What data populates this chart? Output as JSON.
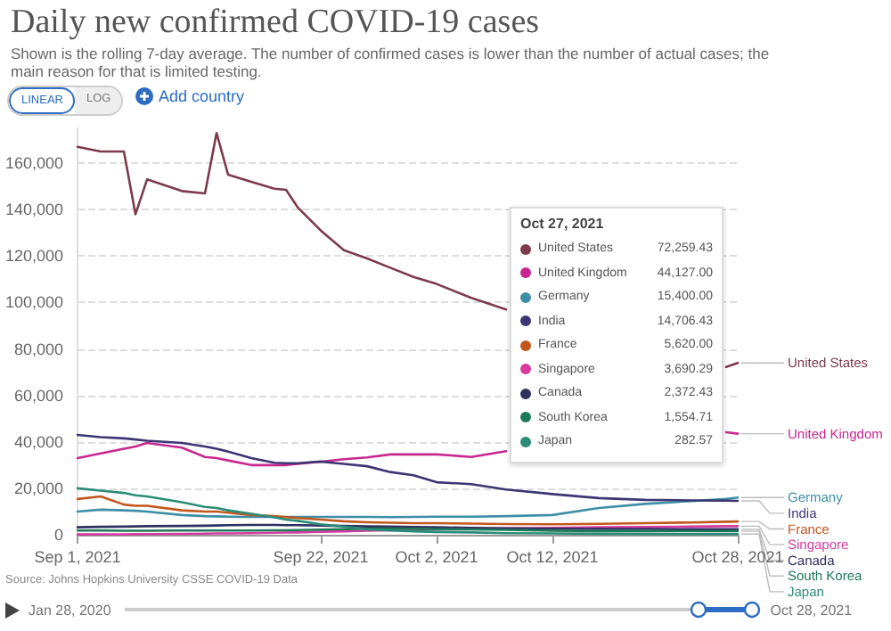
{
  "chart_data": {
    "type": "line",
    "title": "Daily new confirmed COVID-19 cases",
    "subtitle": "Shown is the rolling 7-day average. The number of confirmed cases is lower than the number of actual cases; the main reason for that is limited testing.",
    "annotations": [
      "LINEAR",
      "LOG",
      "Add country",
      "Source: Johns Hopkins University CSSE COVID-19 Data",
      "Jan 28, 2020",
      "Oct 28, 2021",
      "Oct 27, 2021",
      "72,259.43",
      "44,127.00",
      "15,400.00",
      "14,706.43",
      "5,620.00",
      "3,690.29",
      "2,372.43",
      "1,554.71",
      "282.57"
    ],
    "x": [
      "2021-09-01",
      "2021-09-03",
      "2021-09-05",
      "2021-09-06",
      "2021-09-07",
      "2021-09-10",
      "2021-09-12",
      "2021-09-13",
      "2021-09-14",
      "2021-09-16",
      "2021-09-18",
      "2021-09-19",
      "2021-09-20",
      "2021-09-22",
      "2021-09-24",
      "2021-09-26",
      "2021-09-28",
      "2021-09-30",
      "2021-10-02",
      "2021-10-05",
      "2021-10-08",
      "2021-10-12",
      "2021-10-16",
      "2021-10-20",
      "2021-10-24",
      "2021-10-27",
      "2021-10-28"
    ],
    "series": [
      {
        "name": "United States",
        "color": "#7d3b4b",
        "values": [
          167000,
          165000,
          165000,
          138000,
          153000,
          148000,
          147000,
          173000,
          155000,
          152000,
          149000,
          148500,
          141000,
          131000,
          122500,
          119000,
          115000,
          111000,
          108000,
          102000,
          97000,
          null,
          null,
          null,
          null,
          72259.43,
          74000
        ]
      },
      {
        "name": "United Kingdom",
        "color": "#c8278f",
        "values": [
          33000,
          35000,
          37000,
          38000,
          39500,
          37500,
          33500,
          33000,
          32000,
          30000,
          30000,
          30000,
          30500,
          31500,
          32500,
          33300,
          34600,
          34600,
          34600,
          33500,
          36000,
          null,
          null,
          null,
          null,
          44127,
          43500
        ]
      },
      {
        "name": "Germany",
        "color": "#3d8ea8",
        "values": [
          10000,
          10800,
          10500,
          10300,
          10000,
          8500,
          8000,
          7900,
          7800,
          7700,
          7700,
          7700,
          7700,
          7700,
          7700,
          7700,
          7600,
          7700,
          7800,
          7800,
          8000,
          8500,
          11500,
          13300,
          14500,
          15400,
          16000
        ]
      },
      {
        "name": "India",
        "color": "#3b3573",
        "values": [
          43000,
          42000,
          41500,
          41000,
          40500,
          39500,
          38000,
          37000,
          35800,
          33000,
          31000,
          30800,
          30800,
          31500,
          30500,
          29500,
          27000,
          25600,
          22600,
          21800,
          19500,
          17500,
          15800,
          15000,
          14800,
          14706.43,
          14600
        ]
      },
      {
        "name": "France",
        "color": "#c2571e",
        "values": [
          15400,
          16500,
          13000,
          12500,
          12500,
          10500,
          10000,
          10000,
          9500,
          8500,
          8000,
          7600,
          7200,
          6500,
          5800,
          5400,
          5200,
          5000,
          5000,
          4800,
          4600,
          4500,
          4700,
          5000,
          5300,
          5620,
          5700
        ]
      },
      {
        "name": "Singapore",
        "color": "#d33b9e",
        "values": [
          150,
          180,
          220,
          250,
          270,
          400,
          500,
          550,
          600,
          700,
          850,
          950,
          1000,
          1300,
          1500,
          1700,
          1900,
          2100,
          2300,
          2600,
          2800,
          3000,
          3200,
          3300,
          3500,
          3690.29,
          3700
        ]
      },
      {
        "name": "Canada",
        "color": "#2e3160",
        "values": [
          3200,
          3400,
          3500,
          3600,
          3700,
          3800,
          3900,
          4000,
          4100,
          4200,
          4200,
          4100,
          4100,
          4000,
          3800,
          3600,
          3500,
          3300,
          3200,
          3000,
          2800,
          2600,
          2500,
          2500,
          2400,
          2372.43,
          2350
        ]
      },
      {
        "name": "South Korea",
        "color": "#1d7a58",
        "values": [
          1800,
          1800,
          1750,
          1700,
          1750,
          1800,
          1850,
          1850,
          1850,
          1850,
          1900,
          1900,
          2000,
          2200,
          2400,
          2600,
          2700,
          2600,
          2400,
          2300,
          2100,
          1700,
          1600,
          1600,
          1550,
          1554.71,
          1600
        ]
      },
      {
        "name": "Japan",
        "color": "#2a8c78",
        "values": [
          20000,
          19000,
          18000,
          17000,
          16500,
          14000,
          12000,
          11500,
          10500,
          9000,
          7500,
          6500,
          6000,
          4500,
          3500,
          2300,
          1800,
          1500,
          1200,
          1000,
          700,
          600,
          450,
          350,
          300,
          282.57,
          280
        ]
      }
    ],
    "xlim": [
      "2021-09-01",
      "2021-10-28"
    ],
    "xticks": [
      {
        "value": "2021-09-01",
        "label": "Sep 1, 2021"
      },
      {
        "value": "2021-09-22",
        "label": "Sep 22, 2021"
      },
      {
        "value": "2021-10-02",
        "label": "Oct 2, 2021"
      },
      {
        "value": "2021-10-12",
        "label": "Oct 12, 2021"
      },
      {
        "value": "2021-10-28",
        "label": "Oct 28, 2021"
      }
    ],
    "ylim": [
      0,
      175000
    ],
    "yticks": [
      0,
      {
        "value": 20000,
        "label": "20,000"
      },
      {
        "value": 40000,
        "label": "40,000"
      },
      {
        "value": 60000,
        "label": "60,000"
      },
      {
        "value": 80000,
        "label": "80,000"
      },
      {
        "value": 100000,
        "label": "100,000"
      },
      {
        "value": 120000,
        "label": "120,000"
      },
      {
        "value": 140000,
        "label": "140,000"
      },
      {
        "value": 160000,
        "label": "160,000"
      }
    ],
    "grid": "y",
    "legend": "right",
    "marker": "none",
    "line_style": "solid"
  }
}
